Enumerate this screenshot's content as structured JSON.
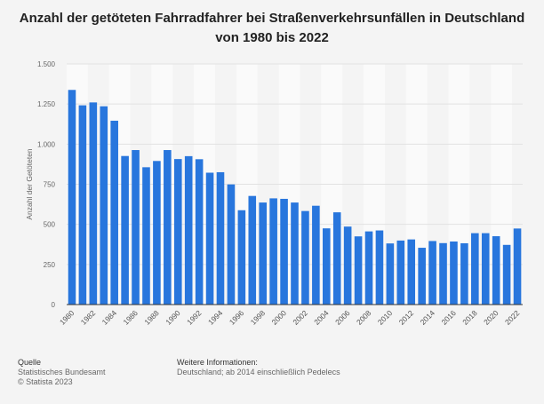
{
  "chart_data": {
    "type": "bar",
    "title": "Anzahl der getöteten Fahrradfahrer bei Straßenverkehrsunfällen in Deutschland von 1980 bis 2022",
    "xlabel": "",
    "ylabel": "Anzahl der Getöteten",
    "ylim": [
      0,
      1500
    ],
    "yticks": [
      0,
      250,
      500,
      750,
      1000,
      1250,
      1500
    ],
    "ytick_labels": [
      "0",
      "250",
      "500",
      "750",
      "1.000",
      "1.250",
      "1.500"
    ],
    "grid": true,
    "bar_color": "#2876dd",
    "categories": [
      "1980",
      "1981",
      "1982",
      "1983",
      "1984",
      "1985",
      "1986",
      "1987",
      "1988",
      "1989",
      "1990",
      "1991",
      "1992",
      "1993",
      "1994",
      "1995",
      "1996",
      "1997",
      "1998",
      "1999",
      "2000",
      "2001",
      "2002",
      "2003",
      "2004",
      "2005",
      "2006",
      "2007",
      "2008",
      "2009",
      "2010",
      "2011",
      "2012",
      "2013",
      "2014",
      "2015",
      "2016",
      "2017",
      "2018",
      "2019",
      "2020",
      "2021",
      "2022"
    ],
    "values": [
      1338,
      1242,
      1260,
      1236,
      1146,
      926,
      963,
      856,
      895,
      963,
      907,
      925,
      906,
      822,
      825,
      749,
      588,
      677,
      636,
      662,
      659,
      636,
      583,
      616,
      475,
      575,
      486,
      425,
      456,
      462,
      381,
      399,
      406,
      354,
      396,
      383,
      393,
      382,
      445,
      445,
      426,
      372,
      474
    ]
  },
  "footer": {
    "source_heading": "Quelle",
    "source_lines": [
      "Statistisches Bundesamt",
      "© Statista 2023"
    ],
    "info_heading": "Weitere Informationen:",
    "info_text": "Deutschland; ab 2014 einschließlich Pedelecs"
  }
}
